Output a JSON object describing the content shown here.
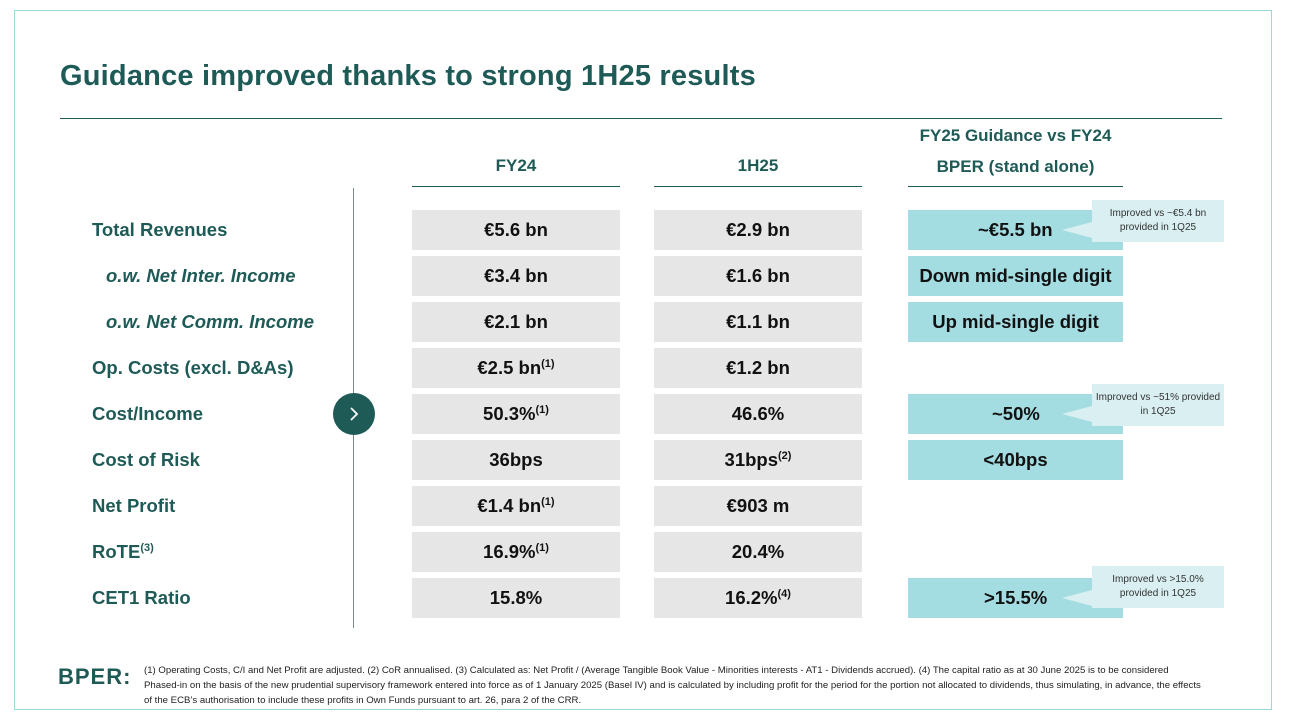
{
  "title": "Guidance improved thanks to strong 1H25 results",
  "columns": {
    "fy24": "FY24",
    "h1": "1H25",
    "guidance_line1": "FY25  Guidance vs FY24",
    "guidance_line2": "BPER (stand alone)"
  },
  "rows": [
    {
      "label": "Total Revenues",
      "fy24": "€5.6 bn",
      "h1": "€2.9 bn",
      "guidance": "~€5.5 bn",
      "callout": "Improved vs ~€5.4 bn provided in 1Q25"
    },
    {
      "label": "o.w. Net Inter. Income",
      "fy24": "€3.4 bn",
      "h1": "€1.6 bn",
      "guidance": "Down mid-single digit"
    },
    {
      "label": "o.w. Net Comm. Income",
      "fy24": "€2.1 bn",
      "h1": "€1.1 bn",
      "guidance": "Up mid-single digit"
    },
    {
      "label": "Op. Costs (excl. D&As)",
      "fy24": "€2.5 bn",
      "fy24_note": "(1)",
      "h1": "€1.2 bn"
    },
    {
      "label": "Cost/Income",
      "fy24": "50.3%",
      "fy24_note": "(1)",
      "h1": "46.6%",
      "guidance": "~50%",
      "callout": "Improved vs ~51% provided in 1Q25"
    },
    {
      "label": "Cost of Risk",
      "fy24": "36bps",
      "h1": "31bps",
      "h1_note": "(2)",
      "guidance": "<40bps"
    },
    {
      "label": "Net Profit",
      "fy24": "€1.4 bn",
      "fy24_note": "(1)",
      "h1": "€903 m"
    },
    {
      "label": "RoTE",
      "label_note": "(3)",
      "fy24": "16.9%",
      "fy24_note": "(1)",
      "h1": "20.4%"
    },
    {
      "label": "CET1 Ratio",
      "fy24": "15.8%",
      "h1": "16.2%",
      "h1_note": "(4)",
      "guidance": ">15.5%",
      "callout": "Improved vs >15.0% provided in 1Q25"
    }
  ],
  "footer": {
    "logo": "BPER:",
    "notes": "(1) Operating Costs, C/I and Net Profit are adjusted.    (2) CoR annualised.    (3) Calculated as: Net Profit / (Average Tangible Book Value - Minorities interests - AT1 - Dividends accrued).    (4) The capital ratio as at 30 June 2025 is to be considered Phased-in on the basis of the new prudential supervisory framework entered into force as of 1 January 2025 (Basel IV) and is calculated by including profit for the period for the portion not allocated to dividends, thus simulating, in advance, the effects of the ECB’s authorisation to include these profits in Own Funds pursuant to art. 26, para 2 of the CRR."
  },
  "colors": {
    "brand": "#1e5a56",
    "teal_cell": "#a3dde2",
    "gray_cell": "#e6e6e6",
    "callout": "#d9eff1"
  }
}
